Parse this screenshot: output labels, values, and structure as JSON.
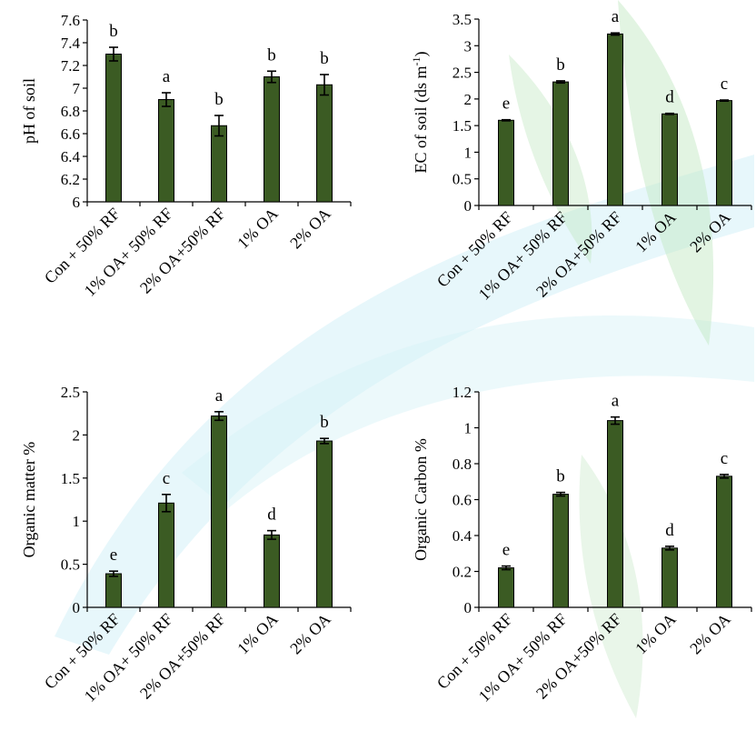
{
  "colors": {
    "bar": "#3b5b23",
    "bar_edge": "#000000",
    "watermark_green": "#bfe6bf",
    "watermark_cyan": "#d4f1f7"
  },
  "chart_data": [
    {
      "type": "bar",
      "title": "",
      "xlabel": "",
      "ylabel": "pH of soil",
      "ylim": [
        6,
        7.6
      ],
      "yticks": [
        "6",
        "6.2",
        "6.4",
        "6.6",
        "6.8",
        "7",
        "7.2",
        "7.4",
        "7.6"
      ],
      "categories": [
        "Con + 50% RF",
        "1% OA+ 50% RF",
        "2% OA+50% RF",
        "1% OA",
        "2% OA"
      ],
      "values": [
        7.3,
        6.9,
        6.67,
        7.1,
        7.03
      ],
      "errors": [
        0.06,
        0.06,
        0.09,
        0.05,
        0.09
      ],
      "significance": [
        "b",
        "a",
        "b",
        "b",
        "b"
      ]
    },
    {
      "type": "bar",
      "title": "",
      "xlabel": "",
      "ylabel": "EC of soil (ds m-1)",
      "ylabel_main": "EC of soil (ds m",
      "ylabel_sup": "-1",
      "ylabel_close": ")",
      "ylim": [
        0,
        3.5
      ],
      "yticks": [
        "0",
        "0.5",
        "1",
        "1.5",
        "2",
        "2.5",
        "3",
        "3.5"
      ],
      "categories": [
        "Con + 50% RF",
        "1% OA+ 50% RF",
        "2% OA+50% RF",
        "1% OA",
        "2% OA"
      ],
      "values": [
        1.6,
        2.32,
        3.22,
        1.72,
        1.97
      ],
      "errors": [
        0.01,
        0.02,
        0.02,
        0.01,
        0.01
      ],
      "significance": [
        "e",
        "b",
        "a",
        "d",
        "c"
      ]
    },
    {
      "type": "bar",
      "title": "",
      "xlabel": "",
      "ylabel": "Organic matter %",
      "ylim": [
        0,
        2.5
      ],
      "yticks": [
        "0",
        "0.5",
        "1",
        "1.5",
        "2",
        "2.5"
      ],
      "categories": [
        "Con + 50% RF",
        "1% OA+ 50% RF",
        "2% OA+50% RF",
        "1% OA",
        "2% OA"
      ],
      "values": [
        0.39,
        1.21,
        2.22,
        0.84,
        1.93
      ],
      "errors": [
        0.03,
        0.1,
        0.05,
        0.05,
        0.03
      ],
      "significance": [
        "e",
        "c",
        "a",
        "d",
        "b"
      ]
    },
    {
      "type": "bar",
      "title": "",
      "xlabel": "",
      "ylabel": "Organic Carbon %",
      "ylim": [
        0,
        1.2
      ],
      "yticks": [
        "0",
        "0.2",
        "0.4",
        "0.6",
        "0.8",
        "1",
        "1.2"
      ],
      "categories": [
        "Con + 50% RF",
        "1% OA+ 50% RF",
        "2% OA+50% RF",
        "1% OA",
        "2% OA"
      ],
      "values": [
        0.22,
        0.63,
        1.04,
        0.33,
        0.73
      ],
      "errors": [
        0.01,
        0.01,
        0.02,
        0.01,
        0.01
      ],
      "significance": [
        "e",
        "b",
        "a",
        "d",
        "c"
      ]
    }
  ]
}
